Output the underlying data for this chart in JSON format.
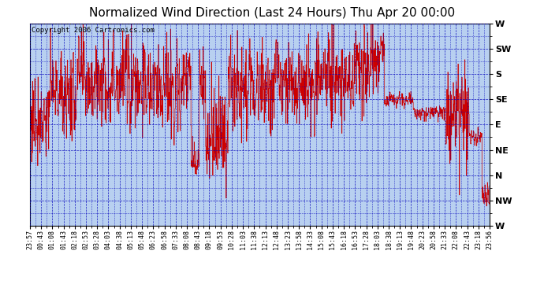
{
  "title": "Normalized Wind Direction (Last 24 Hours) Thu Apr 20 00:00",
  "copyright": "Copyright 2006 Cartronics.com",
  "ytick_labels": [
    "W",
    "NW",
    "N",
    "NE",
    "E",
    "SE",
    "S",
    "SW",
    "W"
  ],
  "ytick_values": [
    0,
    1,
    2,
    3,
    4,
    5,
    6,
    7,
    8
  ],
  "xtick_labels": [
    "23:57",
    "00:43",
    "01:08",
    "01:43",
    "02:18",
    "02:53",
    "03:28",
    "04:03",
    "04:38",
    "05:13",
    "05:48",
    "06:23",
    "06:58",
    "07:33",
    "08:08",
    "08:43",
    "09:18",
    "09:53",
    "10:28",
    "11:03",
    "11:38",
    "12:13",
    "12:48",
    "13:23",
    "13:58",
    "14:33",
    "15:08",
    "15:43",
    "16:18",
    "16:53",
    "17:28",
    "18:03",
    "18:38",
    "19:13",
    "19:48",
    "20:23",
    "20:58",
    "21:33",
    "22:08",
    "22:43",
    "23:18",
    "23:56"
  ],
  "line_color": "#cc0000",
  "background_color": "#b8d0f0",
  "grid_color": "#0000bb",
  "title_fontsize": 11,
  "copyright_fontsize": 6.5,
  "ylabel_fontsize": 8,
  "xlabel_fontsize": 6
}
